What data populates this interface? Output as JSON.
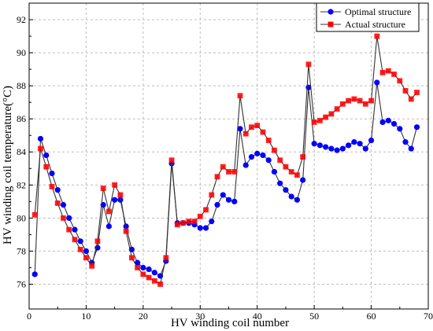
{
  "chart_data": {
    "type": "line",
    "title": "",
    "xlabel": "HV winding coil number",
    "ylabel": "HV winding coil temperature(°C)",
    "xlim": [
      0,
      70
    ],
    "ylim": [
      74.5,
      93
    ],
    "x_ticks": [
      0,
      10,
      20,
      30,
      40,
      50,
      60,
      70
    ],
    "y_ticks": [
      76,
      78,
      80,
      82,
      84,
      86,
      88,
      90,
      92
    ],
    "grid": "dashed vertical and horizontal lines at major ticks",
    "legend_position": "top-right",
    "x": [
      1,
      2,
      3,
      4,
      5,
      6,
      7,
      8,
      9,
      10,
      11,
      12,
      13,
      14,
      15,
      16,
      17,
      18,
      19,
      20,
      21,
      22,
      23,
      24,
      25,
      26,
      27,
      28,
      29,
      30,
      31,
      32,
      33,
      34,
      35,
      36,
      37,
      38,
      39,
      40,
      41,
      42,
      43,
      44,
      45,
      46,
      47,
      48,
      49,
      50,
      51,
      52,
      53,
      54,
      55,
      56,
      57,
      58,
      59,
      60,
      61,
      62,
      63,
      64,
      65,
      66,
      67,
      68
    ],
    "series": [
      {
        "name": "Optimal structure",
        "color": "#0000ff",
        "marker": "circle",
        "values": [
          76.6,
          84.8,
          83.8,
          82.7,
          81.7,
          80.8,
          80.0,
          79.3,
          78.6,
          78.0,
          77.3,
          78.2,
          80.8,
          79.5,
          81.1,
          81.1,
          79.5,
          78.1,
          77.3,
          77.0,
          76.9,
          76.7,
          76.5,
          77.4,
          83.3,
          79.7,
          79.7,
          79.7,
          79.6,
          79.4,
          79.4,
          79.8,
          80.8,
          81.4,
          81.1,
          81.0,
          85.4,
          83.2,
          83.7,
          83.9,
          83.8,
          83.5,
          82.8,
          82.1,
          81.7,
          81.3,
          81.1,
          82.3,
          87.9,
          84.5,
          84.4,
          84.3,
          84.2,
          84.1,
          84.2,
          84.4,
          84.6,
          84.5,
          84.2,
          84.7,
          88.2,
          85.8,
          85.9,
          85.7,
          85.4,
          84.6,
          84.2,
          85.5
        ]
      },
      {
        "name": "Actual structure",
        "color": "#ff0000",
        "marker": "square",
        "values": [
          80.2,
          84.2,
          83.1,
          81.9,
          80.9,
          80.0,
          79.3,
          78.7,
          78.1,
          77.6,
          77.1,
          78.6,
          81.8,
          80.4,
          82.0,
          81.4,
          79.2,
          77.6,
          77.0,
          76.6,
          76.4,
          76.2,
          76.0,
          77.6,
          83.5,
          79.6,
          79.7,
          79.8,
          79.8,
          80.1,
          80.5,
          81.4,
          82.5,
          83.1,
          82.8,
          82.8,
          87.4,
          85.1,
          85.5,
          85.6,
          85.2,
          84.7,
          84.1,
          83.5,
          83.1,
          82.8,
          82.6,
          83.7,
          89.3,
          85.8,
          85.9,
          86.1,
          86.3,
          86.6,
          86.9,
          87.1,
          87.2,
          87.1,
          86.9,
          87.1,
          91.0,
          88.8,
          88.9,
          88.7,
          88.3,
          87.7,
          87.2,
          87.6
        ]
      }
    ]
  }
}
